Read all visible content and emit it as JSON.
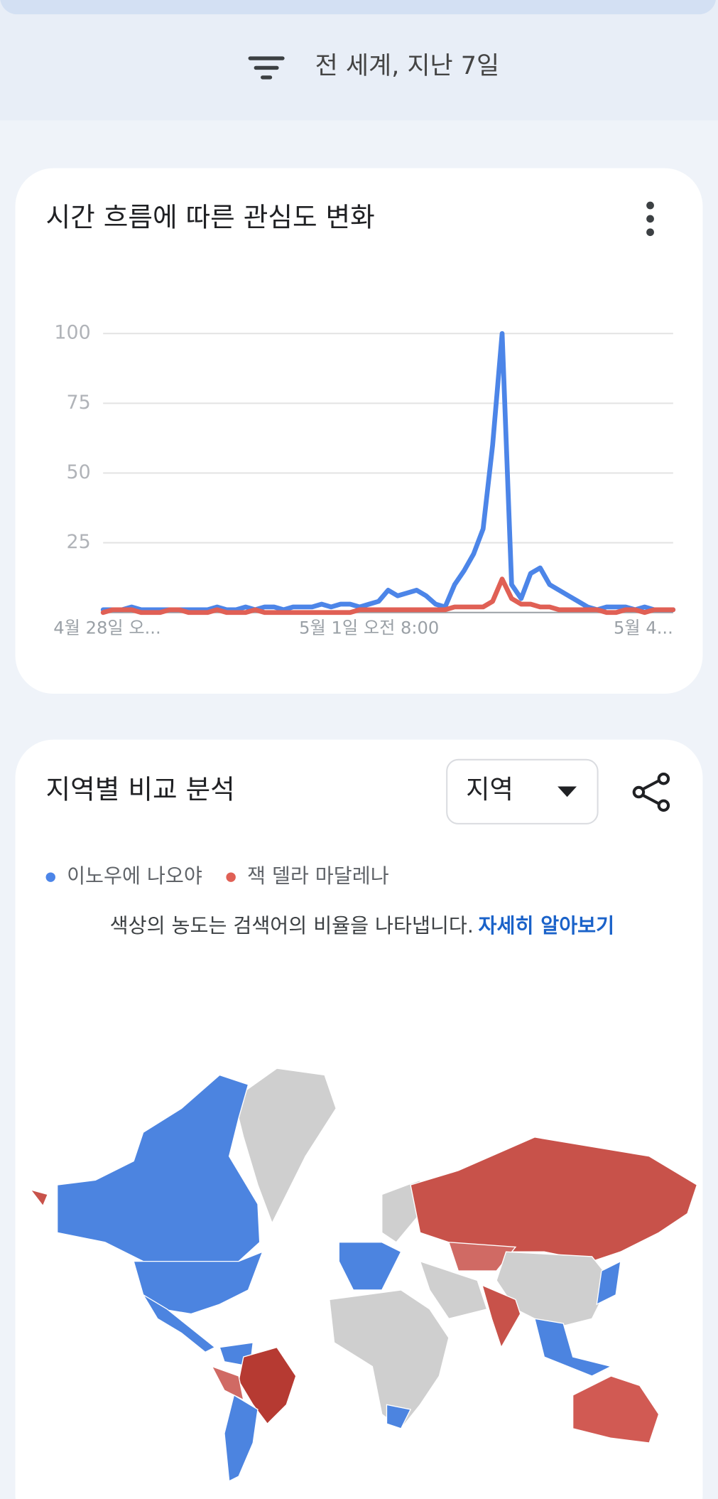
{
  "header": {
    "filter": "전 세계, 지난 7일"
  },
  "chart_data": {
    "type": "line",
    "title": "시간 흐름에 따른 관심도 변화",
    "categories": [
      "4월 28일 오...",
      null,
      null,
      null,
      null,
      null,
      null,
      null,
      null,
      null,
      null,
      null,
      null,
      null,
      null,
      null,
      null,
      null,
      null,
      null,
      null,
      null,
      null,
      null,
      null,
      null,
      null,
      null,
      "5월 1일 오전 8:00",
      null,
      null,
      null,
      null,
      null,
      null,
      null,
      null,
      null,
      null,
      null,
      null,
      null,
      null,
      null,
      null,
      null,
      null,
      null,
      null,
      null,
      null,
      null,
      null,
      null,
      null,
      null,
      null,
      null,
      null,
      null,
      "5월 4..."
    ],
    "series": [
      {
        "name": "이노우에 나오야",
        "color": "#4c85e8",
        "values": [
          1,
          1,
          1,
          2,
          1,
          1,
          1,
          1,
          1,
          1,
          1,
          1,
          2,
          1,
          1,
          2,
          1,
          2,
          2,
          1,
          2,
          2,
          2,
          3,
          2,
          3,
          3,
          2,
          3,
          4,
          8,
          6,
          7,
          8,
          6,
          3,
          2,
          10,
          15,
          21,
          30,
          60,
          100,
          10,
          5,
          14,
          16,
          10,
          8,
          6,
          4,
          2,
          1,
          2,
          2,
          2,
          1,
          2,
          1,
          1,
          1
        ]
      },
      {
        "name": "잭 델라 마달레나",
        "color": "#e06055",
        "values": [
          0,
          1,
          1,
          1,
          0,
          0,
          0,
          1,
          1,
          0,
          0,
          0,
          1,
          0,
          0,
          0,
          1,
          0,
          0,
          0,
          0,
          0,
          0,
          0,
          0,
          0,
          0,
          1,
          1,
          1,
          1,
          1,
          1,
          1,
          1,
          1,
          1,
          2,
          2,
          2,
          2,
          4,
          12,
          5,
          3,
          3,
          2,
          2,
          1,
          1,
          1,
          1,
          1,
          0,
          0,
          1,
          1,
          0,
          1,
          1,
          1
        ]
      }
    ],
    "ylim": [
      0,
      100
    ],
    "yticks": [
      25,
      50,
      75,
      100
    ],
    "grid": true
  },
  "region": {
    "title": "지역별 비교 분석",
    "dropdown": "지역",
    "note": "색상의 농도는 검색어의 비율을 나타냅니다.",
    "link": "자세히 알아보기"
  }
}
